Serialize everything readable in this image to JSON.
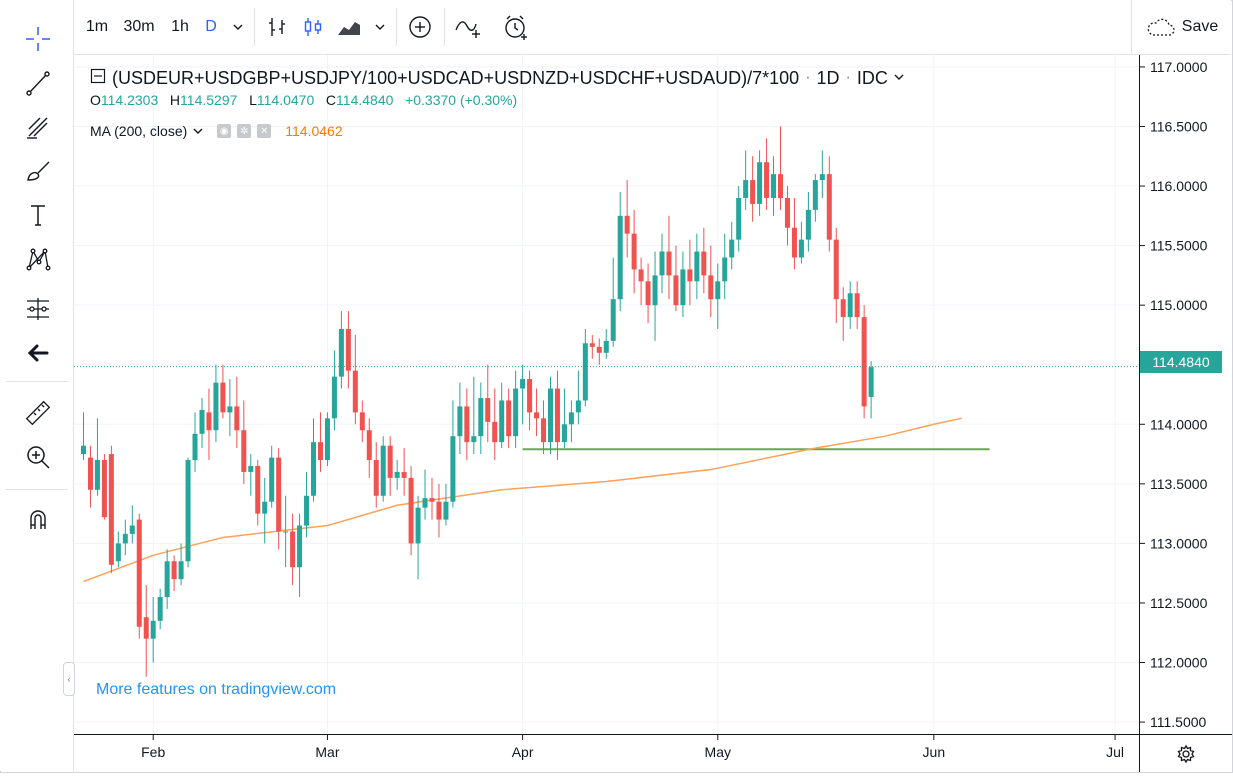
{
  "toolbar": {
    "intervals": [
      {
        "label": "1m",
        "active": false
      },
      {
        "label": "30m",
        "active": false
      },
      {
        "label": "1h",
        "active": false
      },
      {
        "label": "D",
        "active": true
      }
    ],
    "save_label": "Save"
  },
  "left_tools": [
    "crosshair-icon",
    "trend-line-icon",
    "fib-icon",
    "brush-icon",
    "text-icon",
    "pattern-icon",
    "prediction-icon",
    "back-arrow-icon",
    "ruler-icon",
    "zoom-icon",
    "magnet-icon"
  ],
  "legend": {
    "symbol": "(USDEUR+USDGBP+USDJPY/100+USDCAD+USDNZD+USDCHF+USDAUD)/7*100",
    "interval": "1D",
    "source": "IDC",
    "o_label": "O",
    "o": "114.2303",
    "h_label": "H",
    "h": "114.5297",
    "l_label": "L",
    "l": "114.0470",
    "c_label": "C",
    "c": "114.4840",
    "change": "+0.3370 (+0.30%)",
    "ma_label": "MA (200, close)",
    "ma_value": "114.0462"
  },
  "watermark": "More features on tradingview.com",
  "last_price": "114.4840",
  "colors": {
    "up": "#26a69a",
    "down": "#ef5350",
    "ma": "#ffa15a",
    "support": "#6aa84f",
    "accent": "#2962ff"
  },
  "chart_data": {
    "type": "candlestick",
    "ylim": [
      111.4,
      117.1
    ],
    "y_ticks": [
      "117.0000",
      "116.5000",
      "116.0000",
      "115.5000",
      "115.0000",
      "114.5000",
      "114.0000",
      "113.5000",
      "113.0000",
      "112.5000",
      "112.0000",
      "111.5000"
    ],
    "x_ticks": [
      {
        "label": "Feb",
        "index": 10
      },
      {
        "label": "Mar",
        "index": 35
      },
      {
        "label": "Apr",
        "index": 63
      },
      {
        "label": "May",
        "index": 91
      },
      {
        "label": "Jun",
        "index": 122
      },
      {
        "label": "Jul",
        "index": 148
      }
    ],
    "n_slots": 151,
    "candles": [
      [
        113.75,
        113.82,
        114.1,
        113.7
      ],
      [
        113.72,
        113.45,
        113.82,
        113.3
      ],
      [
        113.45,
        113.7,
        114.05,
        113.4
      ],
      [
        113.7,
        113.22,
        113.75,
        113.2
      ],
      [
        113.75,
        112.82,
        113.82,
        112.75
      ],
      [
        112.85,
        113.0,
        113.1,
        112.8
      ],
      [
        113.0,
        113.08,
        113.2,
        112.9
      ],
      [
        113.08,
        113.15,
        113.32,
        113.0
      ],
      [
        113.2,
        112.3,
        113.25,
        112.2
      ],
      [
        112.38,
        112.2,
        112.65,
        111.88
      ],
      [
        112.2,
        112.35,
        112.55,
        112.0
      ],
      [
        112.35,
        112.55,
        112.62,
        112.28
      ],
      [
        112.55,
        112.85,
        112.95,
        112.45
      ],
      [
        112.85,
        112.7,
        112.9,
        112.6
      ],
      [
        112.7,
        112.85,
        113.0,
        112.65
      ],
      [
        112.85,
        113.7,
        113.72,
        112.8
      ],
      [
        113.7,
        113.92,
        114.1,
        113.6
      ],
      [
        113.92,
        114.12,
        114.22,
        113.8
      ],
      [
        114.1,
        113.95,
        114.3,
        113.7
      ],
      [
        113.95,
        114.35,
        114.5,
        113.85
      ],
      [
        114.35,
        114.1,
        114.5,
        114.05
      ],
      [
        114.1,
        114.15,
        114.38,
        113.9
      ],
      [
        114.15,
        113.95,
        114.4,
        113.8
      ],
      [
        113.95,
        113.6,
        114.2,
        113.5
      ],
      [
        113.6,
        113.65,
        113.75,
        113.4
      ],
      [
        113.65,
        113.25,
        113.7,
        113.15
      ],
      [
        113.25,
        113.35,
        113.55,
        113.0
      ],
      [
        113.35,
        113.72,
        113.82,
        113.3
      ],
      [
        113.72,
        113.1,
        113.8,
        112.95
      ],
      [
        113.1,
        113.1,
        113.4,
        112.8
      ],
      [
        113.1,
        112.8,
        113.25,
        112.65
      ],
      [
        112.8,
        113.15,
        113.25,
        112.55
      ],
      [
        113.15,
        113.4,
        113.6,
        113.05
      ],
      [
        113.4,
        113.85,
        114.05,
        113.35
      ],
      [
        113.85,
        113.7,
        114.1,
        113.6
      ],
      [
        113.7,
        114.05,
        114.1,
        113.65
      ],
      [
        114.05,
        114.4,
        114.62,
        113.95
      ],
      [
        114.4,
        114.8,
        114.95,
        114.3
      ],
      [
        114.8,
        114.45,
        114.95,
        114.3
      ],
      [
        114.45,
        114.1,
        114.75,
        114.0
      ],
      [
        114.1,
        113.95,
        114.2,
        113.85
      ],
      [
        113.95,
        113.7,
        114.05,
        113.55
      ],
      [
        113.7,
        113.4,
        113.85,
        113.3
      ],
      [
        113.4,
        113.82,
        113.9,
        113.35
      ],
      [
        113.82,
        113.55,
        113.9,
        113.4
      ],
      [
        113.55,
        113.6,
        113.7,
        113.45
      ],
      [
        113.6,
        113.55,
        113.8,
        113.4
      ],
      [
        113.55,
        113.0,
        113.65,
        112.9
      ],
      [
        113.0,
        113.3,
        113.4,
        112.7
      ],
      [
        113.3,
        113.38,
        113.62,
        113.2
      ],
      [
        113.38,
        113.35,
        113.55,
        113.2
      ],
      [
        113.35,
        113.2,
        113.5,
        113.05
      ],
      [
        113.2,
        113.35,
        113.5,
        113.15
      ],
      [
        113.35,
        113.9,
        114.2,
        113.3
      ],
      [
        113.9,
        114.15,
        114.35,
        113.75
      ],
      [
        114.15,
        113.85,
        114.3,
        113.7
      ],
      [
        113.85,
        113.9,
        114.4,
        113.75
      ],
      [
        113.9,
        114.22,
        114.35,
        113.75
      ],
      [
        114.22,
        114.02,
        114.5,
        113.85
      ],
      [
        114.02,
        113.85,
        114.3,
        113.7
      ],
      [
        113.85,
        114.2,
        114.35,
        113.8
      ],
      [
        114.2,
        113.9,
        114.3,
        113.8
      ],
      [
        113.9,
        114.3,
        114.45,
        113.8
      ],
      [
        114.3,
        114.38,
        114.5,
        114.0
      ],
      [
        114.38,
        114.1,
        114.45,
        113.95
      ],
      [
        114.1,
        114.05,
        114.3,
        113.9
      ],
      [
        114.05,
        113.85,
        114.2,
        113.75
      ],
      [
        113.85,
        114.3,
        114.4,
        113.75
      ],
      [
        114.3,
        113.85,
        114.45,
        113.7
      ],
      [
        113.85,
        114.0,
        114.3,
        113.8
      ],
      [
        114.0,
        114.1,
        114.2,
        113.85
      ],
      [
        114.1,
        114.2,
        114.45,
        114.0
      ],
      [
        114.2,
        114.68,
        114.8,
        114.15
      ],
      [
        114.68,
        114.65,
        114.75,
        114.55
      ],
      [
        114.65,
        114.6,
        114.72,
        114.5
      ],
      [
        114.6,
        114.7,
        114.8,
        114.55
      ],
      [
        114.7,
        115.05,
        115.4,
        114.65
      ],
      [
        115.05,
        115.75,
        115.95,
        114.95
      ],
      [
        115.75,
        115.6,
        116.05,
        115.4
      ],
      [
        115.6,
        115.3,
        115.8,
        115.1
      ],
      [
        115.3,
        115.2,
        115.4,
        115.0
      ],
      [
        115.2,
        115.0,
        115.35,
        114.85
      ],
      [
        115.0,
        115.25,
        115.45,
        114.7
      ],
      [
        115.25,
        115.45,
        115.6,
        115.1
      ],
      [
        115.45,
        115.25,
        115.75,
        115.05
      ],
      [
        115.25,
        115.0,
        115.5,
        114.95
      ],
      [
        115.0,
        115.3,
        115.45,
        114.9
      ],
      [
        115.3,
        115.2,
        115.55,
        115.0
      ],
      [
        115.2,
        115.45,
        115.6,
        115.05
      ],
      [
        115.45,
        115.25,
        115.65,
        115.1
      ],
      [
        115.25,
        115.05,
        115.5,
        114.9
      ],
      [
        115.05,
        115.2,
        115.35,
        114.8
      ],
      [
        115.2,
        115.4,
        115.6,
        115.05
      ],
      [
        115.4,
        115.55,
        115.7,
        115.3
      ],
      [
        115.55,
        115.9,
        116.0,
        115.45
      ],
      [
        115.9,
        116.05,
        116.3,
        115.8
      ],
      [
        116.05,
        115.85,
        116.25,
        115.7
      ],
      [
        115.85,
        116.2,
        116.3,
        115.75
      ],
      [
        116.2,
        115.9,
        116.4,
        115.8
      ],
      [
        115.9,
        116.1,
        116.25,
        115.75
      ],
      [
        116.1,
        115.9,
        116.5,
        115.8
      ],
      [
        115.9,
        115.65,
        116.0,
        115.5
      ],
      [
        115.65,
        115.4,
        115.9,
        115.3
      ],
      [
        115.4,
        115.55,
        115.7,
        115.35
      ],
      [
        115.55,
        115.8,
        115.95,
        115.45
      ],
      [
        115.8,
        116.05,
        116.1,
        115.7
      ],
      [
        116.05,
        116.1,
        116.3,
        115.9
      ],
      [
        116.1,
        115.55,
        116.25,
        115.45
      ],
      [
        115.55,
        115.05,
        115.65,
        114.85
      ],
      [
        115.05,
        114.9,
        115.15,
        114.7
      ],
      [
        114.9,
        115.1,
        115.2,
        114.8
      ],
      [
        115.1,
        114.9,
        115.2,
        114.8
      ],
      [
        114.9,
        114.15,
        115.0,
        114.05
      ],
      [
        114.23,
        114.48,
        114.53,
        114.05
      ]
    ],
    "candle_start_index": 0,
    "ma_series": [
      [
        0,
        112.68
      ],
      [
        10,
        112.9
      ],
      [
        20,
        113.05
      ],
      [
        35,
        113.15
      ],
      [
        45,
        113.32
      ],
      [
        60,
        113.45
      ],
      [
        75,
        113.52
      ],
      [
        90,
        113.62
      ],
      [
        105,
        113.8
      ],
      [
        115,
        113.9
      ],
      [
        122,
        114.0
      ],
      [
        126,
        114.05
      ]
    ],
    "support_line": {
      "value": 113.79,
      "from_index": 63,
      "to_index": 130
    },
    "last_price_line": 114.484
  }
}
